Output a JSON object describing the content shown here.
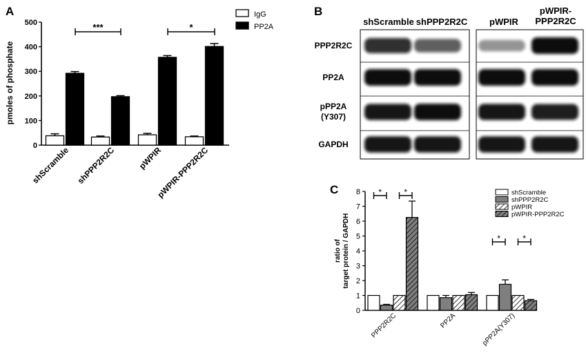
{
  "panel_labels": {
    "a": "A",
    "b": "B",
    "c": "C"
  },
  "colors": {
    "black": "#000000",
    "white": "#ffffff",
    "grey": "#7f7f7f",
    "blot_band": "#111111"
  },
  "chart_data": [
    {
      "type": "bar",
      "panel": "A",
      "ylabel": "pmoles of phosphate",
      "ylim": [
        0,
        500
      ],
      "yticks": [
        "0",
        "100",
        "200",
        "300",
        "400",
        "500"
      ],
      "categories": [
        "shScramble",
        "shPPP2R2C",
        "pWPIR",
        "pWPIR-PPP2R2C"
      ],
      "series": [
        {
          "name": "IgG",
          "fill": "white",
          "values": [
            38,
            33,
            42,
            34
          ],
          "errors": [
            8,
            4,
            6,
            3
          ]
        },
        {
          "name": "PP2A",
          "fill": "black",
          "values": [
            292,
            197,
            357,
            401
          ],
          "errors": [
            7,
            4,
            7,
            12
          ]
        }
      ],
      "legend_position": "top-right",
      "significance": [
        {
          "label": "***",
          "from": 0,
          "to": 1
        },
        {
          "label": "*",
          "from": 2,
          "to": 3
        }
      ]
    },
    {
      "type": "bar",
      "panel": "C",
      "ylabel_lines": [
        "ratio of",
        "target protein / GAPDH"
      ],
      "ylim": [
        0,
        8
      ],
      "yticks": [
        "0",
        "1",
        "2",
        "3",
        "4",
        "5",
        "6",
        "7",
        "8"
      ],
      "categories": [
        "PPP2R2C",
        "PP2A",
        "pPP2A(Y307)"
      ],
      "series": [
        {
          "name": "shScramble",
          "fill": "white",
          "values": [
            1.0,
            1.0,
            1.0
          ],
          "errors": [
            0,
            0,
            0
          ]
        },
        {
          "name": "shPPP2R2C",
          "fill": "grey",
          "values": [
            0.35,
            0.85,
            1.75
          ],
          "errors": [
            0.05,
            0.15,
            0.3
          ]
        },
        {
          "name": "pWPIR",
          "fill": "hatch-white",
          "values": [
            1.0,
            1.0,
            1.0
          ],
          "errors": [
            0,
            0,
            0
          ]
        },
        {
          "name": "pWPIR-PPP2R2C",
          "fill": "hatch-grey",
          "values": [
            6.25,
            1.05,
            0.65
          ],
          "errors": [
            1.1,
            0.15,
            0.08
          ]
        }
      ],
      "legend_position": "top-right",
      "significance": [
        {
          "label": "*",
          "category": 0,
          "from": 0,
          "to": 1
        },
        {
          "label": "*",
          "category": 0,
          "from": 2,
          "to": 3
        },
        {
          "label": "*",
          "category": 2,
          "from": 0,
          "to": 1
        },
        {
          "label": "*",
          "category": 2,
          "from": 2,
          "to": 3
        }
      ]
    }
  ],
  "blot": {
    "column_headers": [
      {
        "lines": [
          "shScramble"
        ]
      },
      {
        "lines": [
          "shPPP2R2C"
        ]
      },
      {
        "lines": [
          "pWPIR"
        ]
      },
      {
        "lines": [
          "pWPIR-",
          "PPP2R2C"
        ]
      }
    ],
    "rows": [
      {
        "lines": [
          "PPP2R2C"
        ],
        "bands": [
          0.8,
          0.55,
          0.25,
          1.0
        ]
      },
      {
        "lines": [
          "PP2A"
        ],
        "bands": [
          1.0,
          1.0,
          1.0,
          1.0
        ]
      },
      {
        "lines": [
          "pPP2A",
          "(Y307)"
        ],
        "bands": [
          0.95,
          1.0,
          0.95,
          0.9
        ]
      },
      {
        "lines": [
          "GAPDH"
        ],
        "bands": [
          0.95,
          0.95,
          0.95,
          0.95
        ]
      }
    ]
  }
}
